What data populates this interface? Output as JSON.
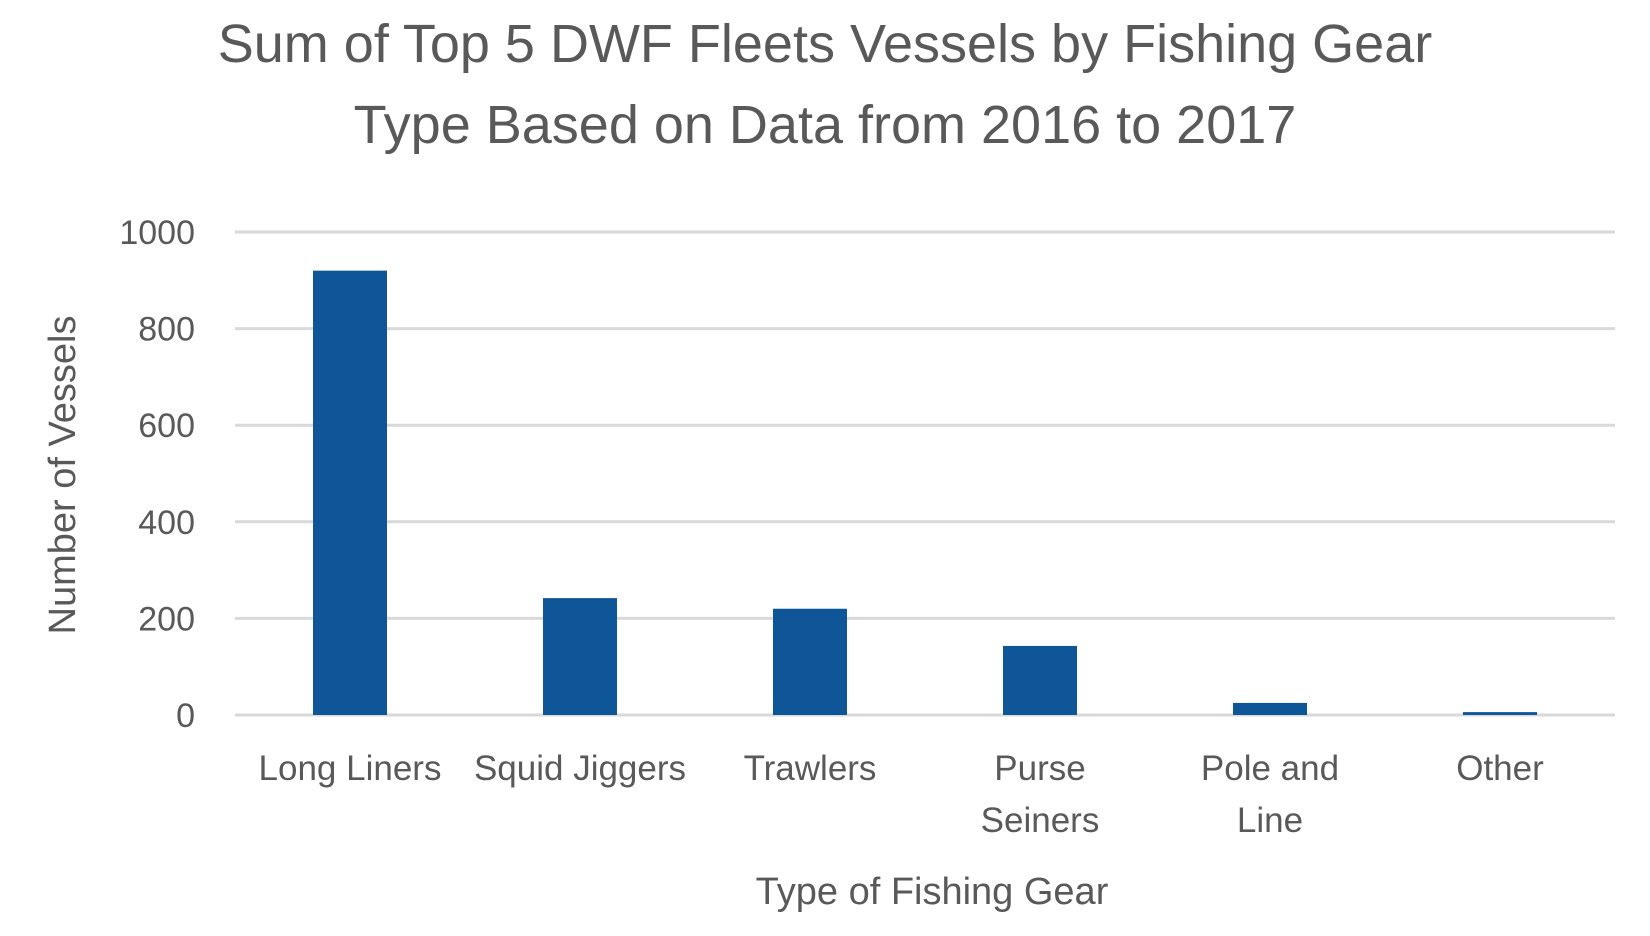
{
  "chart_data": {
    "type": "bar",
    "title_lines": [
      "Sum of Top 5 DWF Fleets Vessels by Fishing Gear",
      "Type Based on Data from 2016 to 2017"
    ],
    "xlabel": "Type of Fishing Gear",
    "ylabel": "Number of Vessels",
    "categories": [
      [
        "Long Liners"
      ],
      [
        "Squid Jiggers"
      ],
      [
        "Trawlers"
      ],
      [
        "Purse",
        "Seiners"
      ],
      [
        "Pole and",
        "Line"
      ],
      [
        "Other"
      ]
    ],
    "values": [
      920,
      242,
      220,
      143,
      25,
      6
    ],
    "ylim": [
      0,
      1000
    ],
    "yticks": [
      "0",
      "200",
      "400",
      "600",
      "800",
      "1000"
    ],
    "grid": true,
    "legend": "none",
    "bar_color": "#0e5697"
  }
}
